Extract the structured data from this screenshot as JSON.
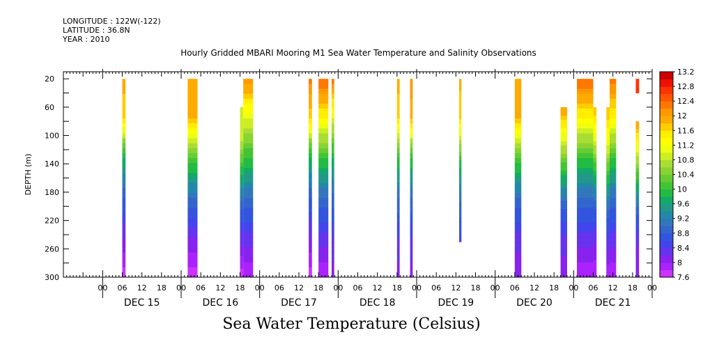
{
  "header": {
    "longitude": "LONGITUDE : 122W(-122)",
    "latitude": "LATITUDE : 36.8N",
    "year": "YEAR : 2010"
  },
  "chart_data": {
    "type": "heatmap",
    "title": "Hourly Gridded MBARI Mooring M1 Sea Water Temperature and Salinity Observations",
    "xlabel": "Sea Water Temperature (Celsius)",
    "ylabel": "DEPTH (m)",
    "x_unit": "hours since 2010-12-15 00:00",
    "xlim": [
      -12,
      168
    ],
    "ylim": [
      300,
      10
    ],
    "y_ticks": [
      20,
      60,
      100,
      140,
      180,
      220,
      260,
      300
    ],
    "hour_tick_labels": [
      "00",
      "06",
      "12",
      "18"
    ],
    "day_labels": [
      {
        "label": "DEC 15",
        "hour": 12
      },
      {
        "label": "DEC 16",
        "hour": 36
      },
      {
        "label": "DEC 17",
        "hour": 60
      },
      {
        "label": "DEC 18",
        "hour": 84
      },
      {
        "label": "DEC 19",
        "hour": 108
      },
      {
        "label": "DEC 20",
        "hour": 132
      },
      {
        "label": "DEC 21",
        "hour": 156
      }
    ],
    "colorbar": {
      "min": 7.6,
      "max": 13.2,
      "step": 0.2,
      "labels": [
        "13.2",
        "12.8",
        "12.4",
        "12",
        "11.6",
        "11.2",
        "10.8",
        "10.4",
        "10",
        "9.6",
        "9.2",
        "8.8",
        "8.4",
        "8",
        "7.6"
      ],
      "colors": [
        "#cc33ff",
        "#aa22ff",
        "#8822ee",
        "#6633ee",
        "#4444ee",
        "#3355dd",
        "#3366cc",
        "#3377bb",
        "#2288aa",
        "#229988",
        "#11aa66",
        "#22bb44",
        "#44c433",
        "#66cc33",
        "#88d433",
        "#aadd33",
        "#ccee22",
        "#eeff11",
        "#ffff00",
        "#ffee00",
        "#ffcc00",
        "#ffaa00",
        "#ff9900",
        "#ff7700",
        "#ff5500",
        "#ff3300",
        "#ee1100",
        "#cc0000"
      ]
    },
    "segments": [
      {
        "x0": 6.0,
        "x1": 7.0,
        "d0": 20,
        "d1": 300,
        "t": [
          11.9,
          11.6,
          9.8,
          8.8,
          8.2,
          7.7
        ]
      },
      {
        "x0": 26.0,
        "x1": 29.0,
        "d0": 20,
        "d1": 300,
        "t": [
          12.0,
          11.8,
          10.2,
          9.0,
          8.2,
          7.7
        ]
      },
      {
        "x0": 42.0,
        "x1": 43.0,
        "d0": 60,
        "d1": 300,
        "t": [
          11.0,
          10.8,
          9.8,
          8.8,
          8.2,
          7.7
        ]
      },
      {
        "x0": 43.0,
        "x1": 46.0,
        "d0": 20,
        "d1": 300,
        "t": [
          12.2,
          11.0,
          10.0,
          9.0,
          8.3,
          7.8
        ]
      },
      {
        "x0": 63.0,
        "x1": 64.0,
        "d0": 20,
        "d1": 300,
        "t": [
          12.3,
          11.6,
          9.8,
          8.8,
          8.2,
          7.7
        ]
      },
      {
        "x0": 66.0,
        "x1": 69.0,
        "d0": 20,
        "d1": 300,
        "t": [
          12.4,
          11.4,
          10.0,
          9.0,
          8.3,
          7.8
        ]
      },
      {
        "x0": 70.0,
        "x1": 70.8,
        "d0": 20,
        "d1": 300,
        "t": [
          12.3,
          11.0,
          9.8,
          8.9,
          8.4,
          8.1
        ]
      },
      {
        "x0": 90.0,
        "x1": 90.8,
        "d0": 20,
        "d1": 300,
        "t": [
          11.9,
          11.6,
          10.0,
          9.0,
          8.4,
          8.1
        ]
      },
      {
        "x0": 94.0,
        "x1": 94.8,
        "d0": 20,
        "d1": 300,
        "t": [
          12.2,
          11.8,
          10.0,
          9.0,
          8.4,
          8.1
        ]
      },
      {
        "x0": 109.0,
        "x1": 109.7,
        "d0": 20,
        "d1": 250,
        "t": [
          11.9,
          11.6,
          10.0,
          9.0,
          8.5
        ]
      },
      {
        "x0": 126.0,
        "x1": 128.0,
        "d0": 20,
        "d1": 300,
        "t": [
          12.0,
          11.8,
          10.2,
          9.0,
          8.3,
          8.0
        ]
      },
      {
        "x0": 140.0,
        "x1": 142.0,
        "d0": 60,
        "d1": 300,
        "t": [
          12.0,
          11.0,
          9.8,
          8.8,
          8.3,
          8.0
        ]
      },
      {
        "x0": 145.0,
        "x1": 150.0,
        "d0": 20,
        "d1": 300,
        "t": [
          12.4,
          11.4,
          10.0,
          9.0,
          8.3,
          7.8
        ]
      },
      {
        "x0": 150.0,
        "x1": 151.0,
        "d0": 60,
        "d1": 300,
        "t": [
          11.8,
          11.0,
          9.8,
          8.8,
          8.2,
          7.8
        ]
      },
      {
        "x0": 154.0,
        "x1": 155.0,
        "d0": 60,
        "d1": 300,
        "t": [
          11.8,
          11.2,
          10.0,
          9.0,
          8.3,
          7.8
        ]
      },
      {
        "x0": 155.0,
        "x1": 157.0,
        "d0": 20,
        "d1": 300,
        "t": [
          12.3,
          11.4,
          10.0,
          9.0,
          8.3,
          7.8
        ]
      },
      {
        "x0": 163.0,
        "x1": 164.0,
        "d0": 20,
        "d1": 40,
        "t": [
          12.6,
          12.6
        ]
      },
      {
        "x0": 163.0,
        "x1": 164.0,
        "d0": 80,
        "d1": 300,
        "t": [
          12.0,
          11.0,
          9.8,
          8.8,
          8.2,
          8.0
        ]
      }
    ]
  }
}
